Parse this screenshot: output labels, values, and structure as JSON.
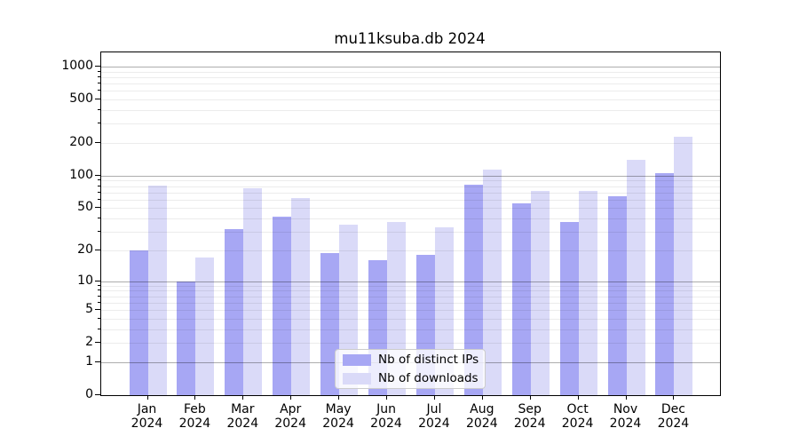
{
  "chart_data": {
    "type": "bar",
    "title": "mu11ksuba.db 2024",
    "categories": [
      "Jan",
      "Feb",
      "Mar",
      "Apr",
      "May",
      "Jun",
      "Jul",
      "Aug",
      "Sep",
      "Oct",
      "Nov",
      "Dec"
    ],
    "category_year": "2024",
    "series": [
      {
        "name": "Nb of distinct IPs",
        "color": "#a7a7f4",
        "values": [
          20,
          10,
          32,
          42,
          19,
          16,
          18,
          83,
          56,
          37,
          64,
          105
        ]
      },
      {
        "name": "Nb of downloads",
        "color": "#dadaf8",
        "values": [
          81,
          17,
          76,
          62,
          35,
          37,
          33,
          113,
          72,
          73,
          140,
          230
        ]
      }
    ],
    "yscale": "log1p",
    "yticks": [
      0,
      1,
      2,
      5,
      10,
      20,
      50,
      100,
      200,
      500,
      1000
    ],
    "ylim": [
      0,
      1350
    ],
    "grid": {
      "major_lines": [
        1,
        10,
        100,
        1000
      ],
      "minor_multiples": [
        2,
        3,
        4,
        5,
        6,
        7,
        8,
        9
      ]
    },
    "legend_position": "lower center",
    "xlabel": "",
    "ylabel": ""
  },
  "colors": {
    "background": "#ffffff",
    "spine": "#000000",
    "major_grid": "#b0b0b0",
    "minor_grid": "#ebebeb",
    "legend_border": "#cccccc",
    "text": "#000000"
  }
}
